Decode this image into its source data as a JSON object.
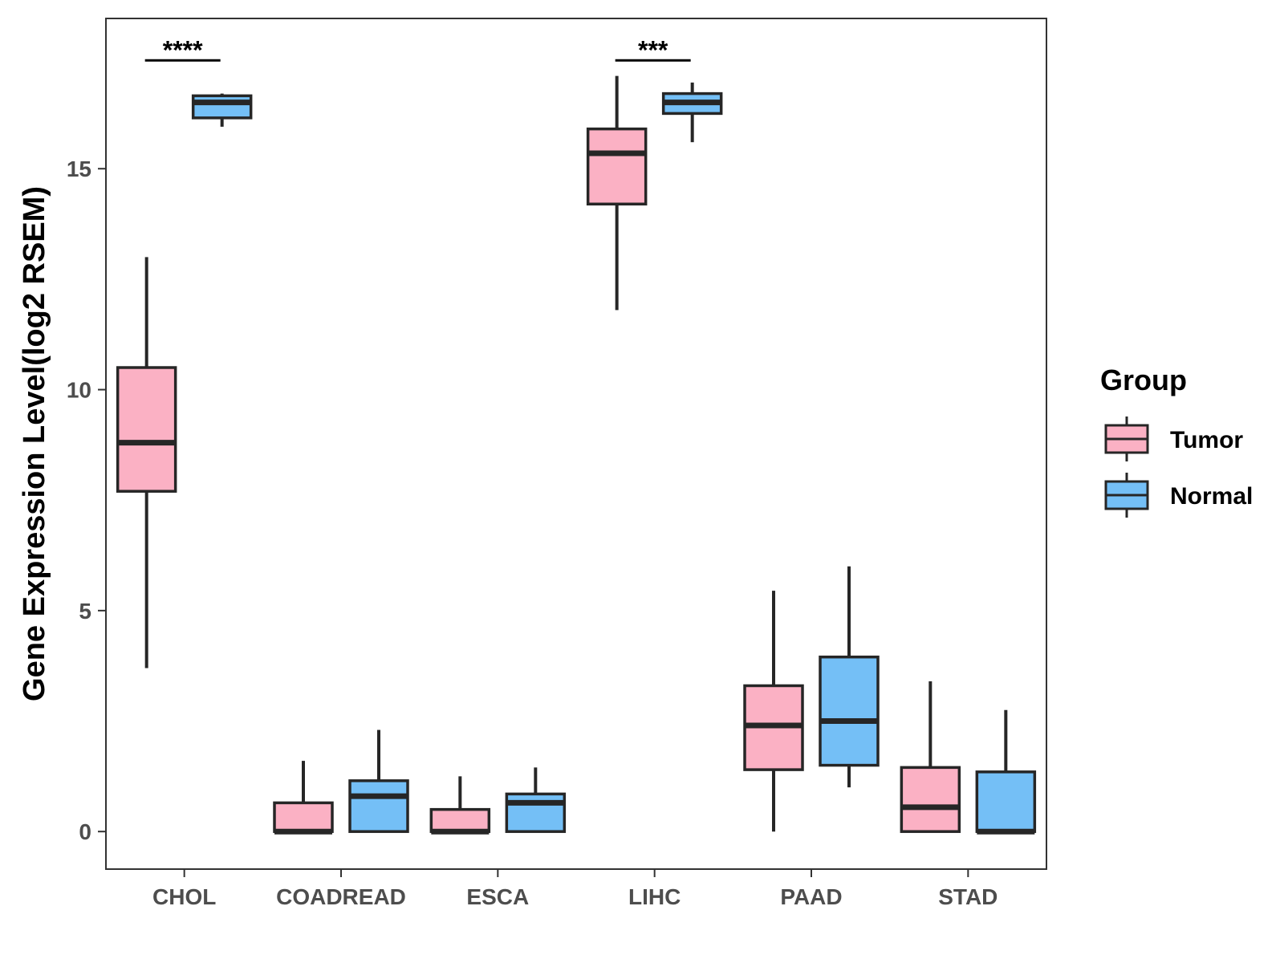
{
  "chart_data": {
    "type": "boxplot",
    "title": "",
    "xlabel": "",
    "ylabel": "Gene Expression Level(log2 RSEM)",
    "ylim": [
      -0.85,
      18.4
    ],
    "yticks": [
      0,
      5,
      10,
      15
    ],
    "ytick_labels": [
      "0",
      "5",
      "10",
      "15"
    ],
    "categories": [
      "CHOL",
      "COADREAD",
      "ESCA",
      "LIHC",
      "PAAD",
      "STAD"
    ],
    "grid": false,
    "legend": {
      "title": "Group",
      "position": "right"
    },
    "series": [
      {
        "name": "Tumor",
        "color": "#FBB1C4",
        "boxes": [
          {
            "category": "CHOL",
            "whisker_low": 3.7,
            "q1": 7.7,
            "median": 8.8,
            "q3": 10.5,
            "whisker_high": 13.0
          },
          {
            "category": "COADREAD",
            "whisker_low": 0.0,
            "q1": 0.0,
            "median": 0.0,
            "q3": 0.65,
            "whisker_high": 1.6
          },
          {
            "category": "ESCA",
            "whisker_low": 0.0,
            "q1": 0.0,
            "median": 0.0,
            "q3": 0.5,
            "whisker_high": 1.25
          },
          {
            "category": "LIHC",
            "whisker_low": 11.8,
            "q1": 14.2,
            "median": 15.35,
            "q3": 15.9,
            "whisker_high": 17.1
          },
          {
            "category": "PAAD",
            "whisker_low": 0.0,
            "q1": 1.4,
            "median": 2.4,
            "q3": 3.3,
            "whisker_high": 5.45
          },
          {
            "category": "STAD",
            "whisker_low": 0.0,
            "q1": 0.0,
            "median": 0.55,
            "q3": 1.45,
            "whisker_high": 3.4
          }
        ]
      },
      {
        "name": "Normal",
        "color": "#74BFF6",
        "boxes": [
          {
            "category": "CHOL",
            "whisker_low": 15.95,
            "q1": 16.15,
            "median": 16.5,
            "q3": 16.65,
            "whisker_high": 16.7
          },
          {
            "category": "COADREAD",
            "whisker_low": 0.0,
            "q1": 0.0,
            "median": 0.8,
            "q3": 1.15,
            "whisker_high": 2.3
          },
          {
            "category": "ESCA",
            "whisker_low": 0.0,
            "q1": 0.0,
            "median": 0.65,
            "q3": 0.85,
            "whisker_high": 1.45
          },
          {
            "category": "LIHC",
            "whisker_low": 15.6,
            "q1": 16.25,
            "median": 16.5,
            "q3": 16.7,
            "whisker_high": 16.95
          },
          {
            "category": "PAAD",
            "whisker_low": 1.0,
            "q1": 1.5,
            "median": 2.5,
            "q3": 3.95,
            "whisker_high": 6.0
          },
          {
            "category": "STAD",
            "whisker_low": 0.0,
            "q1": 0.0,
            "median": 0.0,
            "q3": 1.35,
            "whisker_high": 2.75
          }
        ]
      }
    ],
    "annotations": [
      {
        "category": "CHOL",
        "label": "****",
        "y": 17.45
      },
      {
        "category": "LIHC",
        "label": "***",
        "y": 17.45
      }
    ]
  }
}
